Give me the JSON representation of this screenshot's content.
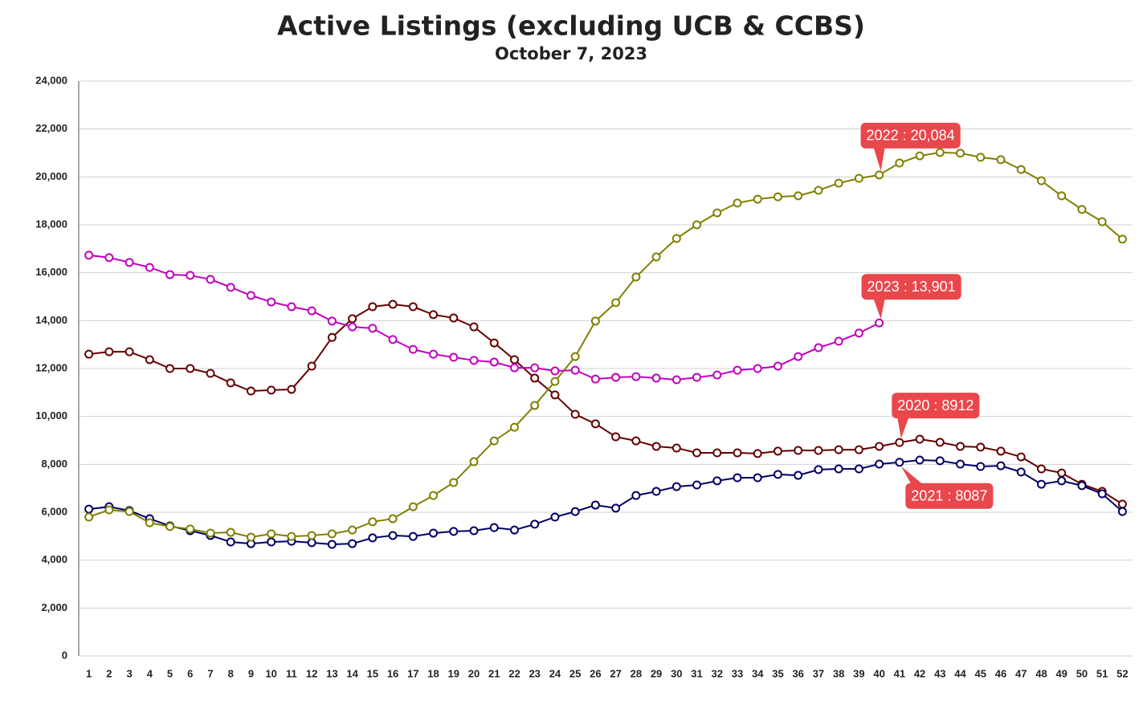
{
  "chart_data": {
    "type": "line",
    "title": "Active Listings (excluding UCB & CCBS)",
    "subtitle": "October 7, 2023",
    "x": [
      1,
      2,
      3,
      4,
      5,
      6,
      7,
      8,
      9,
      10,
      11,
      12,
      13,
      14,
      15,
      16,
      17,
      18,
      19,
      20,
      21,
      22,
      23,
      24,
      25,
      26,
      27,
      28,
      29,
      30,
      31,
      32,
      33,
      34,
      35,
      36,
      37,
      38,
      39,
      40,
      41,
      42,
      43,
      44,
      45,
      46,
      47,
      48,
      49,
      50,
      51,
      52
    ],
    "xlim": [
      0.5,
      52.5
    ],
    "xticks": [
      1,
      2,
      3,
      4,
      5,
      6,
      7,
      8,
      9,
      10,
      11,
      12,
      13,
      14,
      15,
      16,
      17,
      18,
      19,
      20,
      21,
      22,
      23,
      24,
      25,
      26,
      27,
      28,
      29,
      30,
      31,
      32,
      33,
      34,
      35,
      36,
      37,
      38,
      39,
      40,
      41,
      42,
      43,
      44,
      45,
      46,
      47,
      48,
      49,
      50,
      51,
      52
    ],
    "ylim": [
      0,
      24000
    ],
    "yticks": [
      0,
      {
        "value": 2000,
        "label": "2,000"
      },
      {
        "value": 4000,
        "label": "4,000"
      },
      {
        "value": 6000,
        "label": "6,000"
      },
      {
        "value": 8000,
        "label": "8,000"
      },
      {
        "value": 10000,
        "label": "10,000"
      },
      {
        "value": 12000,
        "label": "12,000"
      },
      {
        "value": 14000,
        "label": "14,000"
      },
      {
        "value": 16000,
        "label": "16,000"
      },
      {
        "value": 18000,
        "label": "18,000"
      },
      {
        "value": 20000,
        "label": "20,000"
      },
      {
        "value": 22000,
        "label": "22,000"
      },
      {
        "value": 24000,
        "label": "24,000"
      }
    ],
    "grid": true,
    "series": [
      {
        "name": "2020",
        "color": "#660000",
        "values": [
          12600,
          12700,
          12700,
          12370,
          12000,
          12000,
          11800,
          11400,
          11060,
          11100,
          11130,
          12100,
          13300,
          14080,
          14580,
          14680,
          14580,
          14250,
          14110,
          13740,
          13070,
          12370,
          11600,
          10900,
          10090,
          9690,
          9150,
          8980,
          8750,
          8680,
          8480,
          8480,
          8480,
          8450,
          8550,
          8580,
          8580,
          8610,
          8610,
          8750,
          8912,
          9050,
          8920,
          8750,
          8720,
          8550,
          8310,
          7810,
          7640,
          7170,
          6870,
          6340
        ]
      },
      {
        "name": "2021",
        "color": "#000066",
        "values": [
          6130,
          6230,
          6070,
          5730,
          5430,
          5230,
          5030,
          4760,
          4690,
          4760,
          4790,
          4730,
          4660,
          4690,
          4930,
          5030,
          4990,
          5130,
          5200,
          5230,
          5360,
          5260,
          5500,
          5800,
          6030,
          6300,
          6170,
          6700,
          6870,
          7070,
          7140,
          7310,
          7440,
          7440,
          7580,
          7540,
          7780,
          7810,
          7810,
          8010,
          8087,
          8180,
          8150,
          8010,
          7910,
          7940,
          7680,
          7170,
          7310,
          7110,
          6770,
          6030
        ]
      },
      {
        "name": "2022",
        "color": "#808000",
        "values": [
          5800,
          6100,
          6030,
          5560,
          5400,
          5300,
          5130,
          5160,
          4960,
          5100,
          4990,
          5030,
          5100,
          5260,
          5600,
          5730,
          6230,
          6700,
          7240,
          8110,
          8980,
          9550,
          10460,
          11460,
          12500,
          13980,
          14750,
          15820,
          16660,
          17430,
          18000,
          18500,
          18910,
          19070,
          19170,
          19210,
          19440,
          19740,
          19940,
          20084,
          20580,
          20880,
          21020,
          20990,
          20820,
          20720,
          20310,
          19840,
          19210,
          18640,
          18130,
          17400
        ]
      },
      {
        "name": "2023",
        "color": "#c000c0",
        "values": [
          16730,
          16630,
          16430,
          16220,
          15920,
          15890,
          15720,
          15390,
          15050,
          14780,
          14580,
          14410,
          13980,
          13740,
          13680,
          13210,
          12800,
          12600,
          12470,
          12340,
          12270,
          12030,
          12030,
          11900,
          11930,
          11560,
          11630,
          11660,
          11600,
          11530,
          11630,
          11730,
          11930,
          12000,
          12100,
          12500,
          12870,
          13140,
          13480,
          13901,
          null,
          null,
          null,
          null,
          null,
          null,
          null,
          null,
          null,
          null,
          null,
          null
        ]
      }
    ],
    "annotations": [
      {
        "text": "2022 : 20,084",
        "series": "2022",
        "x": 40
      },
      {
        "text": "2023 : 13,901",
        "series": "2023",
        "x": 40
      },
      {
        "text": "2020 : 8912",
        "series": "2020",
        "x": 41
      },
      {
        "text": "2021 : 8087",
        "series": "2021",
        "x": 41
      }
    ]
  }
}
